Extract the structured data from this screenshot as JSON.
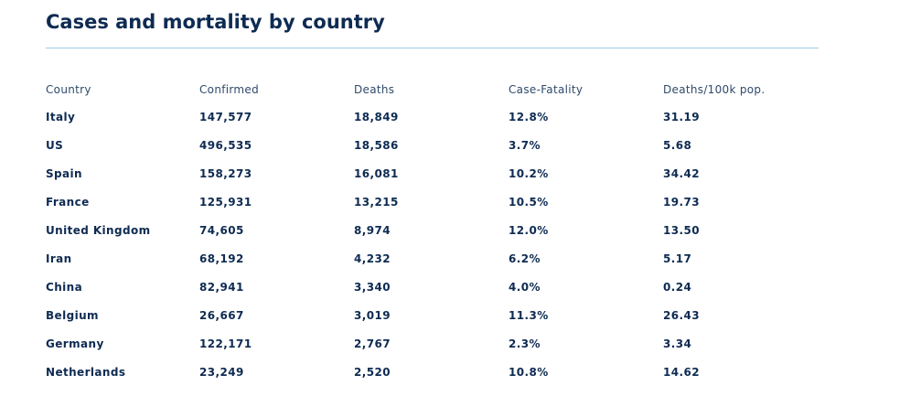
{
  "title": "Cases and mortality by country",
  "table": {
    "headers": [
      "Country",
      "Confirmed",
      "Deaths",
      "Case-Fatality",
      "Deaths/100k pop."
    ],
    "rows": [
      [
        "Italy",
        "147,577",
        "18,849",
        "12.8%",
        "31.19"
      ],
      [
        "US",
        "496,535",
        "18,586",
        "3.7%",
        "5.68"
      ],
      [
        "Spain",
        "158,273",
        "16,081",
        "10.2%",
        "34.42"
      ],
      [
        "France",
        "125,931",
        "13,215",
        "10.5%",
        "19.73"
      ],
      [
        "United Kingdom",
        "74,605",
        "8,974",
        "12.0%",
        "13.50"
      ],
      [
        "Iran",
        "68,192",
        "4,232",
        "6.2%",
        "5.17"
      ],
      [
        "China",
        "82,941",
        "3,340",
        "4.0%",
        "0.24"
      ],
      [
        "Belgium",
        "26,667",
        "3,019",
        "11.3%",
        "26.43"
      ],
      [
        "Germany",
        "122,171",
        "2,767",
        "2.3%",
        "3.34"
      ],
      [
        "Netherlands",
        "23,249",
        "2,520",
        "10.8%",
        "14.62"
      ]
    ]
  },
  "colors": {
    "heading": "#0e2b52",
    "divider": "#9ccbe6",
    "header_text": "#2f4a6b"
  }
}
